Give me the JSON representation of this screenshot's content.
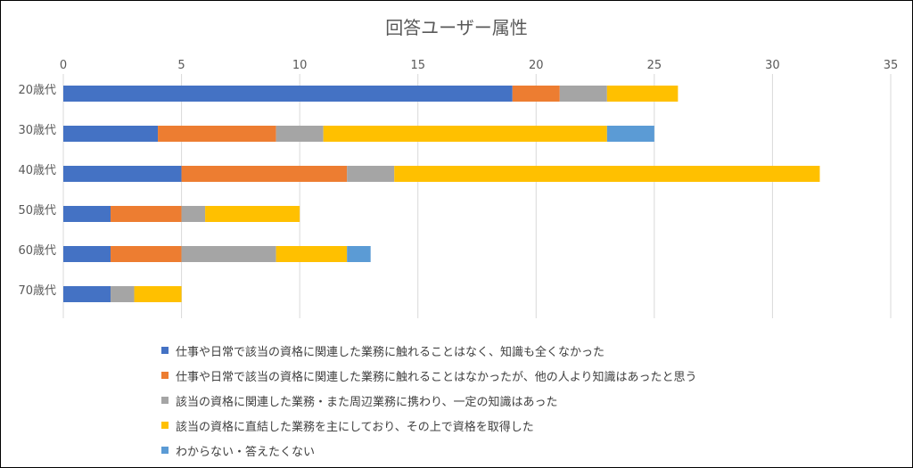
{
  "chart_data": {
    "type": "bar",
    "orientation": "horizontal",
    "stacked": true,
    "title": "回答ユーザー属性",
    "xlabel": "",
    "ylabel": "",
    "xlim": [
      0,
      35
    ],
    "x_ticks": [
      "0",
      "5",
      "10",
      "15",
      "20",
      "25",
      "30",
      "35"
    ],
    "grid": true,
    "legend_position": "bottom",
    "categories": [
      "20歳代",
      "30歳代",
      "40歳代",
      "50歳代",
      "60歳代",
      "70歳代"
    ],
    "series": [
      {
        "name": "仕事や日常で該当の資格に関連した業務に触れることはなく、知識も全くなかった",
        "color": "#4472C4",
        "values": [
          19,
          4,
          5,
          2,
          2,
          2
        ]
      },
      {
        "name": "仕事や日常で該当の資格に関連した業務に触れることはなかったが、他の人より知識はあったと思う",
        "color": "#ED7D31",
        "values": [
          2,
          5,
          7,
          3,
          3,
          0
        ]
      },
      {
        "name": "該当の資格に関連した業務・また周辺業務に携わり、一定の知識はあった",
        "color": "#A5A5A5",
        "values": [
          2,
          2,
          2,
          1,
          4,
          1
        ]
      },
      {
        "name": "該当の資格に直結した業務を主にしており、その上で資格を取得した",
        "color": "#FFC000",
        "values": [
          3,
          12,
          18,
          4,
          3,
          2
        ]
      },
      {
        "name": "わからない・答えたくない",
        "color": "#5B9BD5",
        "values": [
          0,
          2,
          0,
          0,
          1,
          0
        ]
      }
    ]
  }
}
